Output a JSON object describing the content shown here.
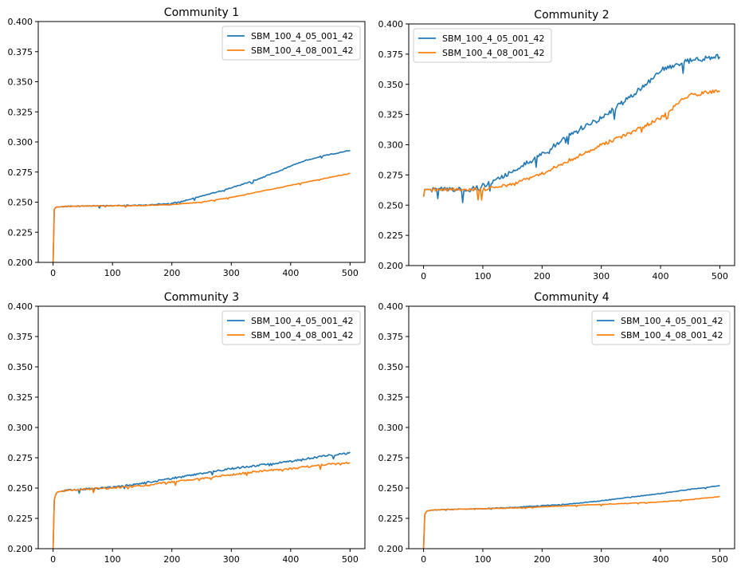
{
  "colors": {
    "series_0": "#1f77b4",
    "series_1": "#ff7f0e",
    "axis": "#000000",
    "legend_border": "#cccccc"
  },
  "chart_data": [
    {
      "type": "line",
      "title": "Community 1",
      "xlabel": "",
      "ylabel": "",
      "xlim": [
        -25,
        525
      ],
      "ylim": [
        0.2,
        0.4
      ],
      "xticks": [
        0,
        100,
        200,
        300,
        400,
        500
      ],
      "xtick_labels": [
        "0",
        "100",
        "200",
        "300",
        "400",
        "500"
      ],
      "yticks": [
        0.2,
        0.225,
        0.25,
        0.275,
        0.3,
        0.325,
        0.35,
        0.375,
        0.4
      ],
      "ytick_labels": [
        "0.200",
        "0.225",
        "0.250",
        "0.275",
        "0.300",
        "0.325",
        "0.350",
        "0.375",
        "0.400"
      ],
      "legend_position": "top-right",
      "series": [
        {
          "name": "SBM_100_4_05_001_42",
          "x": [
            0,
            2,
            5,
            10,
            20,
            50,
            100,
            150,
            200,
            220,
            250,
            280,
            300,
            320,
            350,
            380,
            400,
            420,
            450,
            480,
            500
          ],
          "values": [
            0.2,
            0.244,
            0.246,
            0.246,
            0.2465,
            0.2468,
            0.247,
            0.2475,
            0.249,
            0.251,
            0.255,
            0.259,
            0.262,
            0.265,
            0.27,
            0.276,
            0.28,
            0.284,
            0.288,
            0.291,
            0.293
          ],
          "noise": 0.0008
        },
        {
          "name": "SBM_100_4_08_001_42",
          "x": [
            0,
            2,
            5,
            10,
            20,
            50,
            100,
            150,
            200,
            250,
            300,
            350,
            400,
            450,
            500
          ],
          "values": [
            0.2,
            0.244,
            0.246,
            0.246,
            0.2465,
            0.2468,
            0.247,
            0.2472,
            0.248,
            0.25,
            0.254,
            0.259,
            0.264,
            0.269,
            0.274
          ],
          "noise": 0.0005
        }
      ]
    },
    {
      "type": "line",
      "title": "Community 2",
      "xlabel": "",
      "ylabel": "",
      "xlim": [
        -25,
        525
      ],
      "ylim": [
        0.2,
        0.4
      ],
      "xticks": [
        0,
        100,
        200,
        300,
        400,
        500
      ],
      "xtick_labels": [
        "0",
        "100",
        "200",
        "300",
        "400",
        "500"
      ],
      "yticks": [
        0.2,
        0.225,
        0.25,
        0.275,
        0.3,
        0.325,
        0.35,
        0.375,
        0.4
      ],
      "ytick_labels": [
        "0.200",
        "0.225",
        "0.250",
        "0.275",
        "0.300",
        "0.325",
        "0.350",
        "0.375",
        "0.400"
      ],
      "legend_position": "top-left",
      "series": [
        {
          "name": "SBM_100_4_05_001_42",
          "x": [
            0,
            1,
            3,
            10,
            50,
            80,
            100,
            150,
            200,
            250,
            300,
            350,
            380,
            400,
            430,
            450,
            480,
            500
          ],
          "values": [
            0.257,
            0.263,
            0.263,
            0.263,
            0.263,
            0.263,
            0.266,
            0.278,
            0.292,
            0.31,
            0.322,
            0.34,
            0.352,
            0.362,
            0.367,
            0.37,
            0.372,
            0.373
          ],
          "noise": 0.004
        },
        {
          "name": "SBM_100_4_08_001_42",
          "x": [
            0,
            1,
            3,
            10,
            50,
            100,
            150,
            200,
            250,
            300,
            350,
            400,
            420,
            440,
            450,
            500
          ],
          "values": [
            0.257,
            0.263,
            0.263,
            0.263,
            0.263,
            0.263,
            0.267,
            0.276,
            0.288,
            0.3,
            0.31,
            0.322,
            0.33,
            0.339,
            0.341,
            0.345
          ],
          "noise": 0.003
        }
      ]
    },
    {
      "type": "line",
      "title": "Community 3",
      "xlabel": "",
      "ylabel": "",
      "xlim": [
        -25,
        525
      ],
      "ylim": [
        0.2,
        0.4
      ],
      "xticks": [
        0,
        100,
        200,
        300,
        400,
        500
      ],
      "xtick_labels": [
        "0",
        "100",
        "200",
        "300",
        "400",
        "500"
      ],
      "yticks": [
        0.2,
        0.225,
        0.25,
        0.275,
        0.3,
        0.325,
        0.35,
        0.375,
        0.4
      ],
      "ytick_labels": [
        "0.200",
        "0.225",
        "0.250",
        "0.275",
        "0.300",
        "0.325",
        "0.350",
        "0.375",
        "0.400"
      ],
      "legend_position": "top-right",
      "series": [
        {
          "name": "SBM_100_4_05_001_42",
          "x": [
            0,
            2,
            5,
            10,
            20,
            50,
            100,
            150,
            200,
            250,
            300,
            350,
            400,
            450,
            500
          ],
          "values": [
            0.2,
            0.24,
            0.246,
            0.247,
            0.248,
            0.249,
            0.2505,
            0.254,
            0.258,
            0.262,
            0.266,
            0.269,
            0.272,
            0.276,
            0.279
          ],
          "noise": 0.0015
        },
        {
          "name": "SBM_100_4_08_001_42",
          "x": [
            0,
            2,
            5,
            10,
            20,
            50,
            100,
            150,
            200,
            250,
            300,
            350,
            400,
            450,
            500
          ],
          "values": [
            0.2,
            0.24,
            0.246,
            0.247,
            0.248,
            0.249,
            0.2502,
            0.252,
            0.255,
            0.258,
            0.261,
            0.264,
            0.266,
            0.269,
            0.271
          ],
          "noise": 0.0015
        }
      ]
    },
    {
      "type": "line",
      "title": "Community 4",
      "xlabel": "",
      "ylabel": "",
      "xlim": [
        -25,
        525
      ],
      "ylim": [
        0.2,
        0.4
      ],
      "xticks": [
        0,
        100,
        200,
        300,
        400,
        500
      ],
      "xtick_labels": [
        "0",
        "100",
        "200",
        "300",
        "400",
        "500"
      ],
      "yticks": [
        0.2,
        0.225,
        0.25,
        0.275,
        0.3,
        0.325,
        0.35,
        0.375,
        0.4
      ],
      "ytick_labels": [
        "0.200",
        "0.225",
        "0.250",
        "0.275",
        "0.300",
        "0.325",
        "0.350",
        "0.375",
        "0.400"
      ],
      "legend_position": "top-right",
      "series": [
        {
          "name": "SBM_100_4_05_001_42",
          "x": [
            0,
            2,
            5,
            10,
            20,
            50,
            100,
            150,
            200,
            250,
            300,
            350,
            400,
            450,
            500
          ],
          "values": [
            0.2,
            0.228,
            0.231,
            0.2315,
            0.232,
            0.2325,
            0.233,
            0.234,
            0.2355,
            0.237,
            0.2395,
            0.2425,
            0.2455,
            0.249,
            0.252
          ],
          "noise": 0.0006
        },
        {
          "name": "SBM_100_4_08_001_42",
          "x": [
            0,
            2,
            5,
            10,
            20,
            50,
            100,
            150,
            200,
            250,
            300,
            350,
            400,
            450,
            500
          ],
          "values": [
            0.2,
            0.228,
            0.231,
            0.2315,
            0.232,
            0.2325,
            0.233,
            0.2335,
            0.2345,
            0.2355,
            0.2365,
            0.2375,
            0.2385,
            0.2405,
            0.243
          ],
          "noise": 0.0004
        }
      ]
    }
  ]
}
